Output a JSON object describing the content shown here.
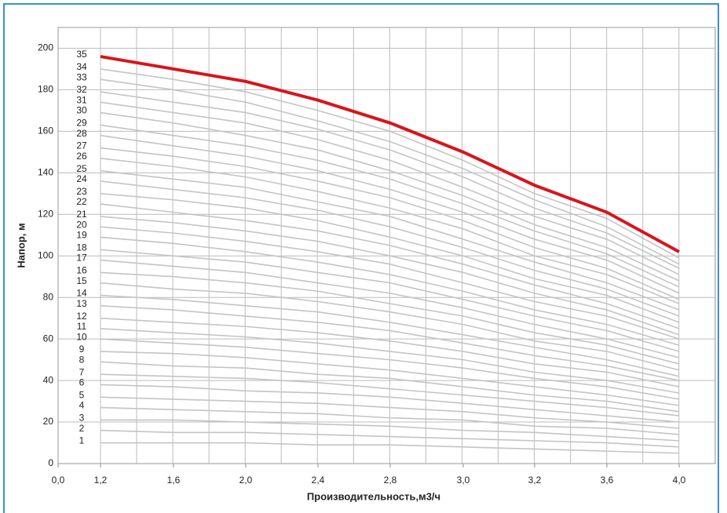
{
  "chart_data": {
    "type": "line",
    "x_label": "Производительность,м3/ч",
    "y_label": "Напор, м",
    "categories": [
      "0,0",
      "1,2",
      "1,6",
      "2,0",
      "2,4",
      "2,8",
      "3,0",
      "3,2",
      "3,6",
      "4,0"
    ],
    "ylim": [
      0,
      210
    ],
    "yticks": [
      0,
      20,
      40,
      60,
      80,
      100,
      120,
      140,
      160,
      180,
      200
    ],
    "grid": true,
    "series": [
      {
        "name": "1",
        "color": "#c4c4c4",
        "values": [
          null,
          10,
          10,
          10,
          9,
          9,
          8,
          7,
          6,
          5
        ]
      },
      {
        "name": "2",
        "color": "#c4c4c4",
        "values": [
          null,
          16,
          15,
          15,
          14,
          13,
          12,
          11,
          10,
          8
        ]
      },
      {
        "name": "3",
        "color": "#c4c4c4",
        "values": [
          null,
          21,
          21,
          20,
          19,
          18,
          16,
          15,
          13,
          11
        ]
      },
      {
        "name": "4",
        "color": "#c4c4c4",
        "values": [
          null,
          27,
          26,
          25,
          24,
          22,
          21,
          18,
          17,
          14
        ]
      },
      {
        "name": "5",
        "color": "#c4c4c4",
        "values": [
          null,
          32,
          31,
          30,
          29,
          27,
          25,
          22,
          20,
          17
        ]
      },
      {
        "name": "6",
        "color": "#c4c4c4",
        "values": [
          null,
          38,
          37,
          35,
          34,
          32,
          29,
          26,
          23,
          20
        ]
      },
      {
        "name": "7",
        "color": "#c4c4c4",
        "values": [
          null,
          43,
          42,
          41,
          39,
          36,
          33,
          30,
          27,
          23
        ]
      },
      {
        "name": "8",
        "color": "#c4c4c4",
        "values": [
          null,
          49,
          47,
          46,
          43,
          41,
          37,
          33,
          30,
          25
        ]
      },
      {
        "name": "9",
        "color": "#c4c4c4",
        "values": [
          null,
          54,
          53,
          51,
          48,
          45,
          41,
          37,
          33,
          28
        ]
      },
      {
        "name": "10",
        "color": "#c4c4c4",
        "values": [
          null,
          60,
          58,
          56,
          53,
          50,
          46,
          41,
          37,
          31
        ]
      },
      {
        "name": "11",
        "color": "#c4c4c4",
        "values": [
          null,
          65,
          63,
          61,
          58,
          54,
          50,
          44,
          40,
          34
        ]
      },
      {
        "name": "12",
        "color": "#c4c4c4",
        "values": [
          null,
          70,
          68,
          66,
          63,
          59,
          54,
          48,
          44,
          37
        ]
      },
      {
        "name": "13",
        "color": "#c4c4c4",
        "values": [
          null,
          76,
          74,
          71,
          68,
          64,
          58,
          52,
          47,
          40
        ]
      },
      {
        "name": "14",
        "color": "#c4c4c4",
        "values": [
          null,
          81,
          79,
          76,
          73,
          68,
          62,
          56,
          50,
          42
        ]
      },
      {
        "name": "15",
        "color": "#c4c4c4",
        "values": [
          null,
          87,
          84,
          82,
          78,
          73,
          67,
          59,
          54,
          45
        ]
      },
      {
        "name": "16",
        "color": "#c4c4c4",
        "values": [
          null,
          92,
          90,
          87,
          83,
          77,
          71,
          63,
          57,
          48
        ]
      },
      {
        "name": "17",
        "color": "#c4c4c4",
        "values": [
          null,
          98,
          95,
          92,
          87,
          82,
          75,
          67,
          60,
          51
        ]
      },
      {
        "name": "18",
        "color": "#c4c4c4",
        "values": [
          null,
          103,
          100,
          97,
          92,
          87,
          79,
          71,
          64,
          54
        ]
      },
      {
        "name": "19",
        "color": "#c4c4c4",
        "values": [
          null,
          109,
          106,
          102,
          97,
          91,
          83,
          74,
          67,
          57
        ]
      },
      {
        "name": "20",
        "color": "#c4c4c4",
        "values": [
          null,
          114,
          111,
          107,
          102,
          96,
          87,
          78,
          71,
          60
        ]
      },
      {
        "name": "21",
        "color": "#c4c4c4",
        "values": [
          null,
          119,
          116,
          112,
          107,
          100,
          92,
          82,
          74,
          62
        ]
      },
      {
        "name": "22",
        "color": "#c4c4c4",
        "values": [
          null,
          125,
          121,
          117,
          112,
          105,
          96,
          86,
          77,
          65
        ]
      },
      {
        "name": "23",
        "color": "#c4c4c4",
        "values": [
          null,
          130,
          127,
          123,
          117,
          109,
          100,
          89,
          81,
          68
        ]
      },
      {
        "name": "24",
        "color": "#c4c4c4",
        "values": [
          null,
          136,
          132,
          128,
          122,
          114,
          104,
          93,
          84,
          71
        ]
      },
      {
        "name": "25",
        "color": "#c4c4c4",
        "values": [
          null,
          141,
          137,
          133,
          126,
          119,
          108,
          97,
          87,
          74
        ]
      },
      {
        "name": "26",
        "color": "#c4c4c4",
        "values": [
          null,
          147,
          143,
          138,
          131,
          123,
          113,
          100,
          91,
          77
        ]
      },
      {
        "name": "27",
        "color": "#c4c4c4",
        "values": [
          null,
          152,
          148,
          143,
          136,
          128,
          117,
          104,
          94,
          79
        ]
      },
      {
        "name": "28",
        "color": "#c4c4c4",
        "values": [
          null,
          158,
          153,
          148,
          141,
          132,
          121,
          108,
          98,
          82
        ]
      },
      {
        "name": "29",
        "color": "#c4c4c4",
        "values": [
          null,
          163,
          158,
          153,
          146,
          137,
          125,
          112,
          101,
          85
        ]
      },
      {
        "name": "30",
        "color": "#c4c4c4",
        "values": [
          null,
          169,
          164,
          158,
          151,
          141,
          129,
          115,
          104,
          88
        ]
      },
      {
        "name": "31",
        "color": "#c4c4c4",
        "values": [
          null,
          174,
          169,
          164,
          156,
          146,
          133,
          119,
          108,
          91
        ]
      },
      {
        "name": "32",
        "color": "#c4c4c4",
        "values": [
          null,
          179,
          174,
          169,
          161,
          151,
          138,
          123,
          111,
          94
        ]
      },
      {
        "name": "33",
        "color": "#c4c4c4",
        "values": [
          null,
          185,
          180,
          174,
          165,
          155,
          142,
          127,
          114,
          96
        ]
      },
      {
        "name": "34",
        "color": "#c4c4c4",
        "values": [
          null,
          190,
          185,
          179,
          170,
          160,
          146,
          130,
          118,
          99
        ]
      },
      {
        "name": "35",
        "color": "#d7151c",
        "values": [
          null,
          196,
          190,
          184,
          175,
          164,
          150,
          134,
          121,
          102
        ]
      }
    ]
  }
}
